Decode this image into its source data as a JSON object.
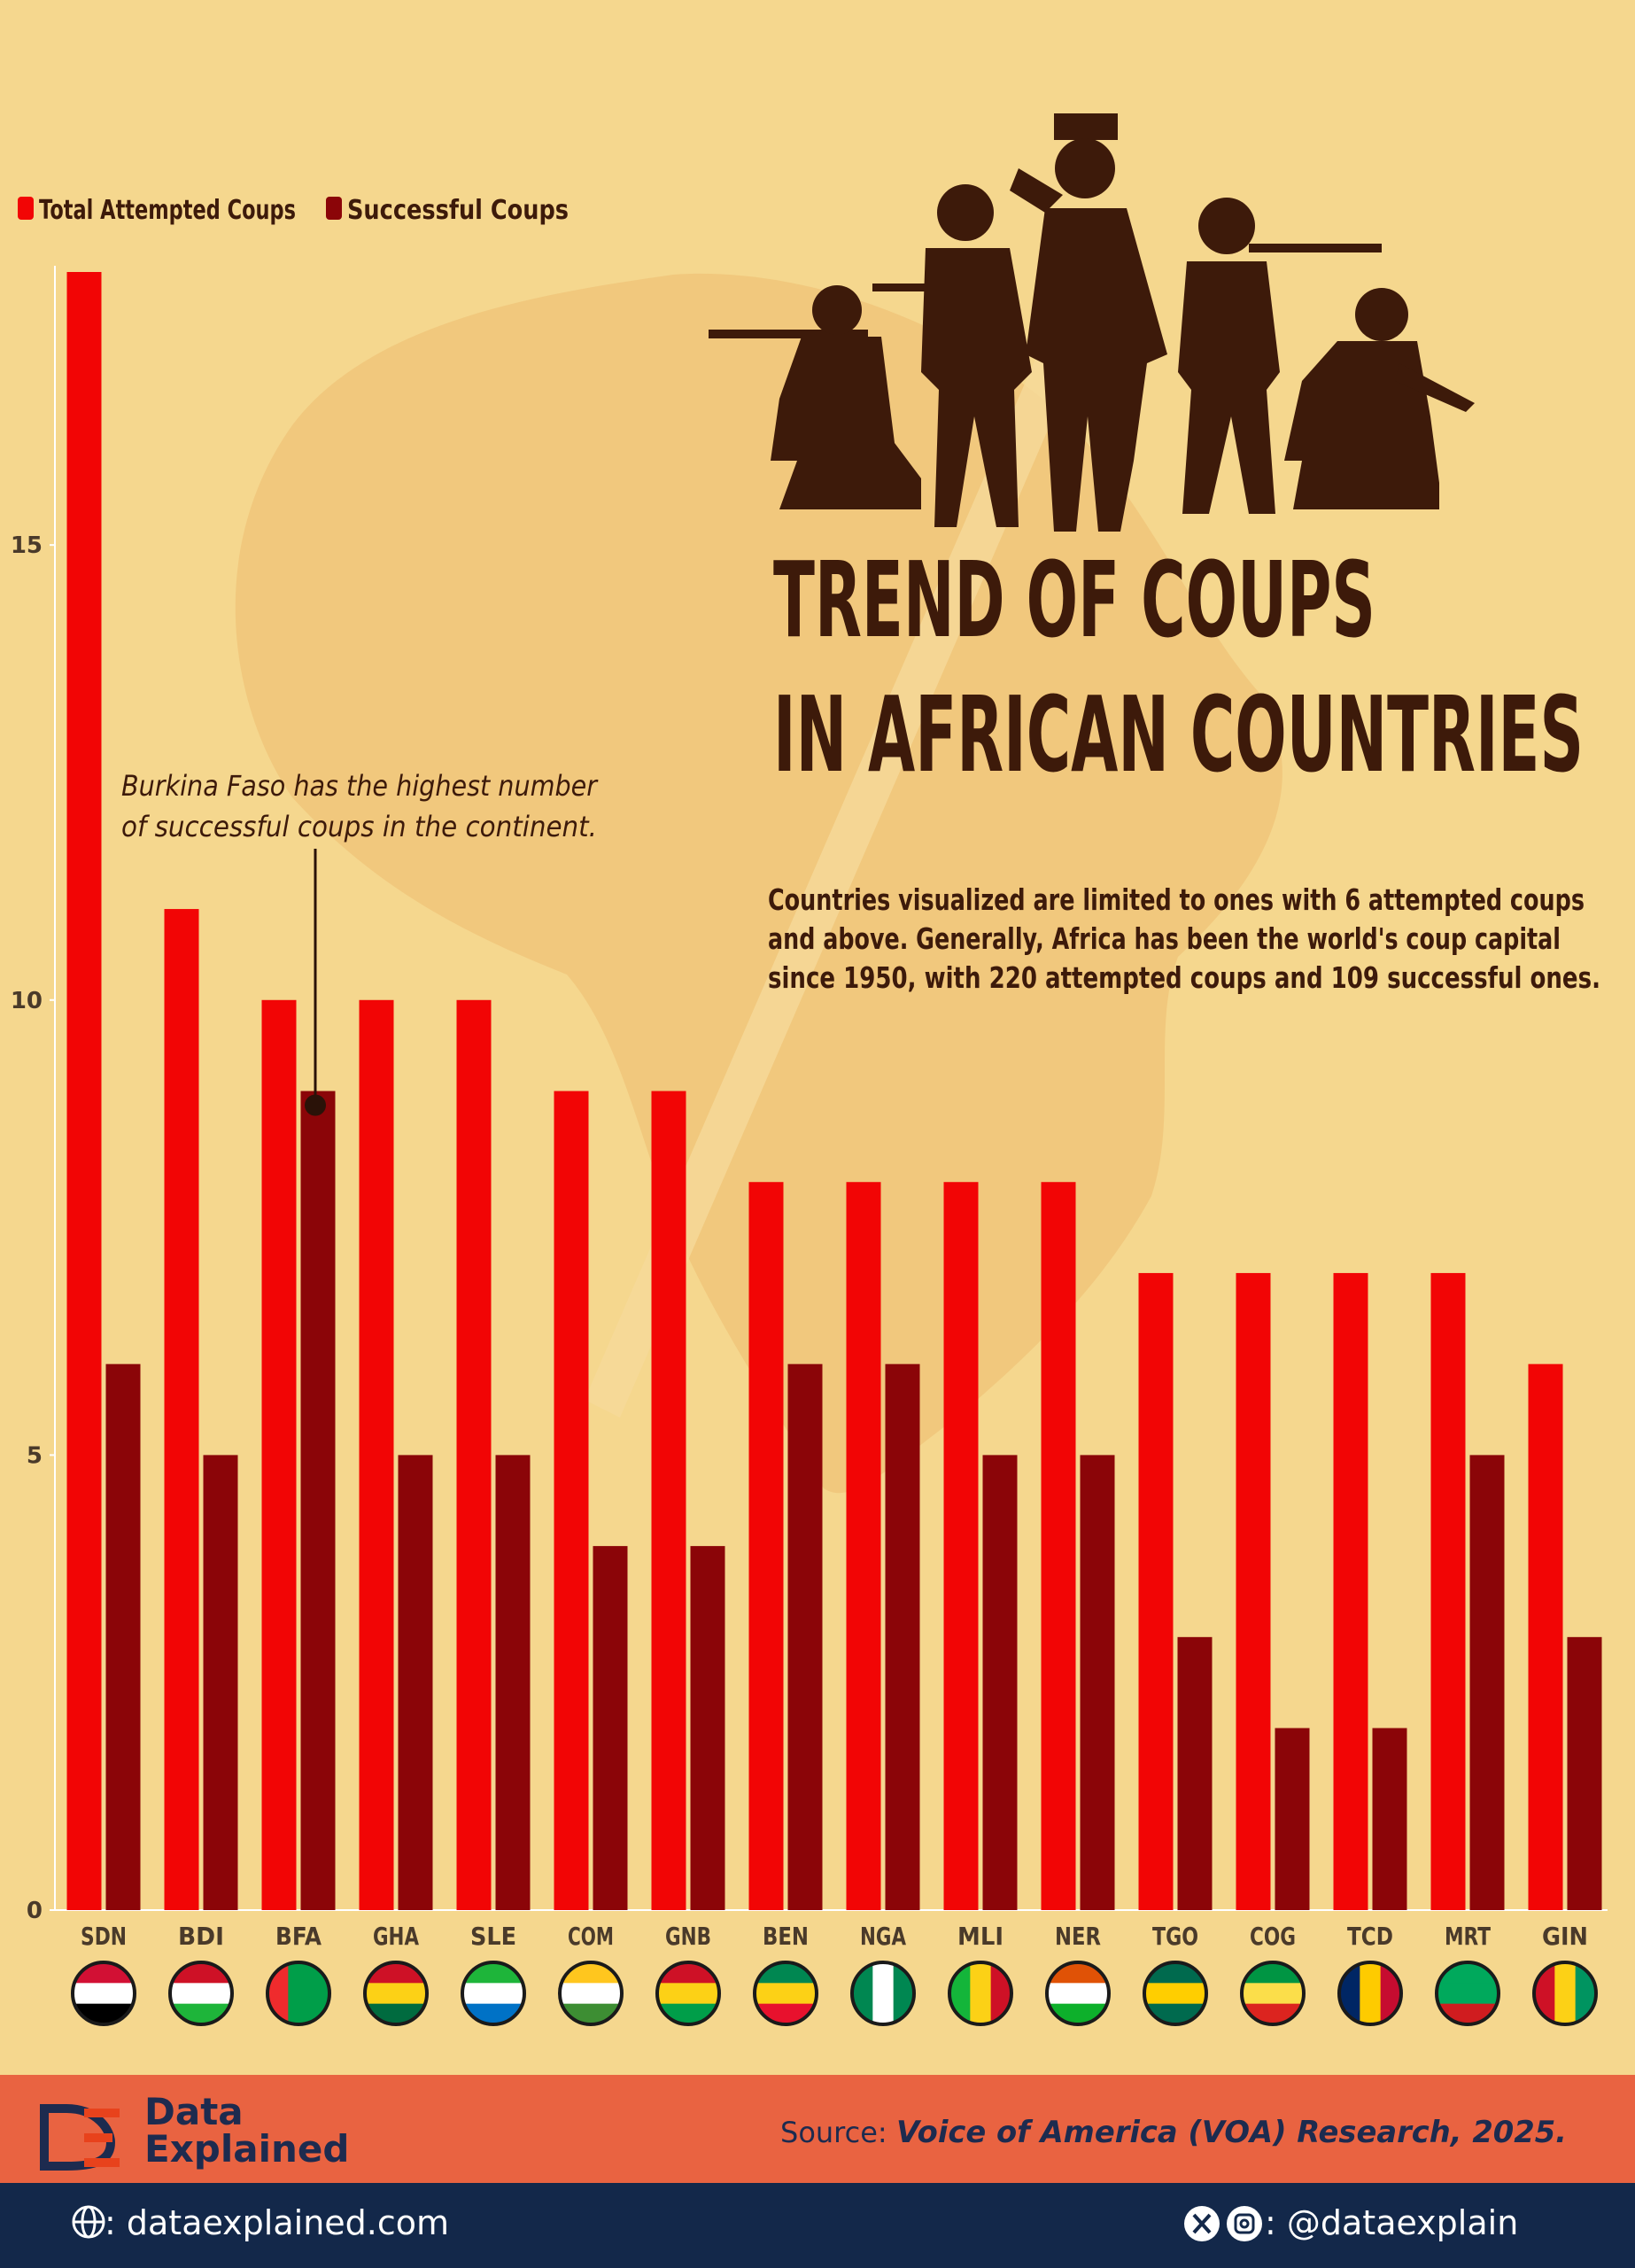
{
  "chart_data": {
    "type": "bar",
    "title_lines": [
      "TREND OF COUPS",
      "IN AFRICAN COUNTRIES"
    ],
    "subtitle_lines": [
      "Countries visualized are limited to ones with 6 attempted coups",
      "and above. Generally, Africa has been the world's coup capital",
      "since 1950, with 220 attempted coups and 109 successful ones."
    ],
    "annotation_lines": [
      "Burkina Faso has the highest number",
      "of successful coups in the continent."
    ],
    "categories": [
      "SDN",
      "BDI",
      "BFA",
      "GHA",
      "SLE",
      "COM",
      "GNB",
      "BEN",
      "NGA",
      "MLI",
      "NER",
      "TGO",
      "COG",
      "TCD",
      "MRT",
      "GIN"
    ],
    "series": [
      {
        "name": "Total Attempted Coups",
        "color": "#f20505",
        "values": [
          18,
          11,
          10,
          10,
          10,
          9,
          9,
          8,
          8,
          8,
          8,
          7,
          7,
          7,
          7,
          6
        ]
      },
      {
        "name": "Successful Coups",
        "color": "#8b0508",
        "values": [
          6,
          5,
          9,
          5,
          5,
          4,
          4,
          6,
          6,
          5,
          5,
          3,
          2,
          2,
          5,
          3
        ]
      }
    ],
    "ylim": [
      0,
      18
    ],
    "yticks": [
      0,
      5,
      10,
      15
    ],
    "grid": false
  },
  "footer": {
    "brand_lines": [
      "Data",
      "Explained"
    ],
    "source_label": "Source:",
    "source": "Voice of America (VOA) Research, 2025.",
    "website": ": dataexplained.com",
    "handle": ": @dataexplain"
  }
}
